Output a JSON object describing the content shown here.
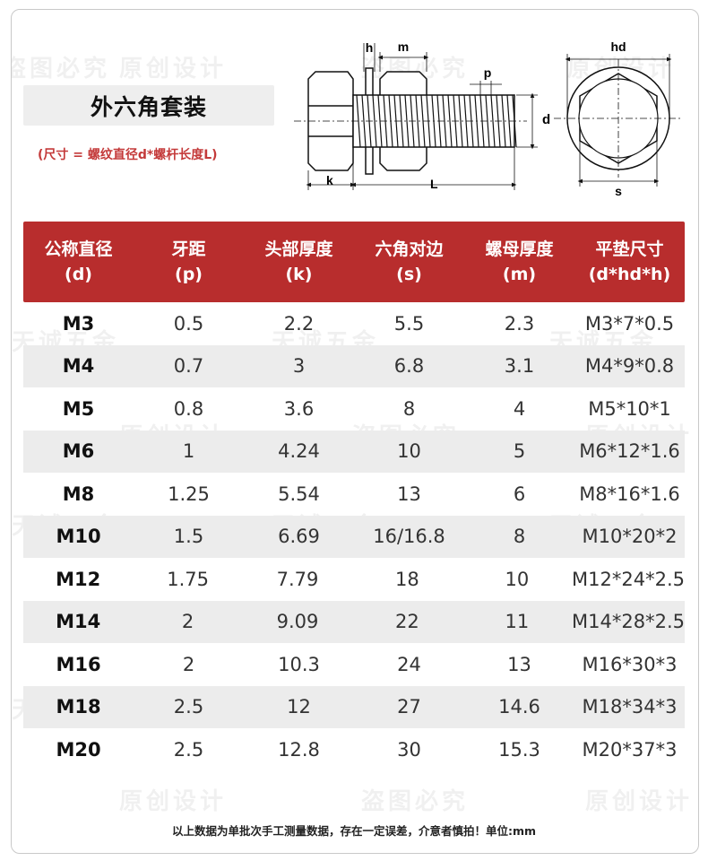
{
  "title": "外六角套装",
  "subtitle": "(尺寸 = 螺纹直径d*螺杆长度L)",
  "diagram_labels": {
    "h": "h",
    "m": "m",
    "p": "p",
    "d": "d",
    "k": "k",
    "L": "L",
    "hd": "hd",
    "s": "s"
  },
  "table": {
    "headers": [
      {
        "line1": "公称直径",
        "line2": "(d)"
      },
      {
        "line1": "牙距",
        "line2": "(p)"
      },
      {
        "line1": "头部厚度",
        "line2": "(k)"
      },
      {
        "line1": "六角对边",
        "line2": "(s)"
      },
      {
        "line1": "螺母厚度",
        "line2": "(m)"
      },
      {
        "line1": "平垫尺寸",
        "line2": "(d*hd*h)"
      }
    ],
    "rows": [
      [
        "M3",
        "0.5",
        "2.2",
        "5.5",
        "2.3",
        "M3*7*0.5"
      ],
      [
        "M4",
        "0.7",
        "3",
        "6.8",
        "3.1",
        "M4*9*0.8"
      ],
      [
        "M5",
        "0.8",
        "3.6",
        "8",
        "4",
        "M5*10*1"
      ],
      [
        "M6",
        "1",
        "4.24",
        "10",
        "5",
        "M6*12*1.6"
      ],
      [
        "M8",
        "1.25",
        "5.54",
        "13",
        "6",
        "M8*16*1.6"
      ],
      [
        "M10",
        "1.5",
        "6.69",
        "16/16.8",
        "8",
        "M10*20*2"
      ],
      [
        "M12",
        "1.75",
        "7.79",
        "18",
        "10",
        "M12*24*2.5"
      ],
      [
        "M14",
        "2",
        "9.09",
        "22",
        "11",
        "M14*28*2.5"
      ],
      [
        "M16",
        "2",
        "10.3",
        "24",
        "13",
        "M16*30*3"
      ],
      [
        "M18",
        "2.5",
        "12",
        "27",
        "14.6",
        "M18*34*3"
      ],
      [
        "M20",
        "2.5",
        "12.8",
        "30",
        "15.3",
        "M20*37*3"
      ]
    ]
  },
  "footnote": "以上数据为单批次手工测量数据，存在一定误差，介意者慎拍！单位:mm",
  "watermarks": [
    "原创设计",
    "盗图必究",
    "天诚五金"
  ],
  "colors": {
    "header_bg": "#b82d2d",
    "subtitle": "#c43a3a",
    "row_alt": "#ececec"
  }
}
